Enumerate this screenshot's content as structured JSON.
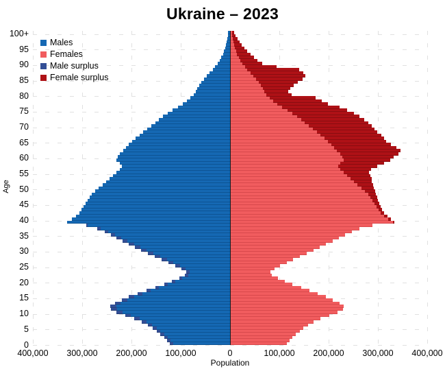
{
  "title": "Ukraine – 2023",
  "legend": {
    "items": [
      {
        "label": "Males",
        "color": "#1568b3"
      },
      {
        "label": "Females",
        "color": "#f15c5e"
      },
      {
        "label": "Male surplus",
        "color": "#334f96"
      },
      {
        "label": "Female surplus",
        "color": "#ae1116"
      }
    ]
  },
  "axes": {
    "x_label": "Population",
    "y_label": "Age",
    "x_tick_labels": [
      "400,000",
      "300,000",
      "200,000",
      "100,000",
      "0",
      "100,000",
      "200,000",
      "300,000",
      "400,000"
    ],
    "y_tick_labels": [
      "100+",
      "95",
      "90",
      "85",
      "80",
      "75",
      "70",
      "65",
      "60",
      "55",
      "50",
      "45",
      "40",
      "35",
      "30",
      "25",
      "20",
      "15",
      "10",
      "5",
      "0"
    ],
    "x_max_each_side": 400000,
    "grid": true
  },
  "chart_data": {
    "type": "bar",
    "subtype": "population-pyramid",
    "title": "Ukraine – 2023",
    "xlabel": "Population",
    "ylabel": "Age",
    "age_min": 0,
    "age_max_label": "100+",
    "xlim_per_side": [
      0,
      400000
    ],
    "legend_position": "top-left-inside",
    "colors": {
      "males": "#1568b3",
      "females": "#f15c5e",
      "male_surplus": "#334f96",
      "female_surplus": "#ae1116",
      "center_axis": "#1c1c1c",
      "grid": "#e0e0e0"
    },
    "series": [
      {
        "name": "Males",
        "side": "left",
        "values_by_age": [
          122000,
          128000,
          134000,
          141000,
          149000,
          157000,
          167000,
          179000,
          194000,
          212000,
          230000,
          242000,
          243000,
          234000,
          220000,
          205000,
          188000,
          170000,
          152000,
          134000,
          118000,
          103000,
          92000,
          89000,
          98000,
          111000,
          125000,
          139000,
          153000,
          167000,
          180000,
          193000,
          206000,
          218000,
          230000,
          242000,
          254000,
          269000,
          292000,
          330000,
          321000,
          312000,
          306000,
          301000,
          297000,
          293000,
          289000,
          285000,
          280000,
          274000,
          267000,
          259000,
          251000,
          244000,
          237000,
          230000,
          224000,
          220000,
          224000,
          230000,
          228000,
          223000,
          217000,
          211000,
          205000,
          198000,
          191000,
          184000,
          176000,
          168000,
          160000,
          152000,
          144000,
          136000,
          127000,
          116000,
          106000,
          96000,
          87000,
          80000,
          74000,
          70000,
          66000,
          62000,
          58000,
          53000,
          47000,
          41000,
          35000,
          30000,
          25000,
          21000,
          17500,
          14500,
          12000,
          10000,
          8000,
          6500,
          5000,
          4000,
          3500
        ]
      },
      {
        "name": "Females",
        "side": "right",
        "values_by_age": [
          115000,
          121000,
          127000,
          134000,
          141000,
          149000,
          158000,
          170000,
          184000,
          201000,
          218000,
          229000,
          230000,
          222000,
          209000,
          194000,
          178000,
          161000,
          144000,
          127000,
          111000,
          97000,
          85000,
          82000,
          90000,
          102000,
          115000,
          128000,
          142000,
          156000,
          169000,
          182000,
          195000,
          208000,
          221000,
          234000,
          247000,
          263000,
          289000,
          334000,
          327000,
          319000,
          313000,
          309000,
          306000,
          303000,
          300000,
          298000,
          296000,
          294000,
          292000,
          290000,
          288000,
          287000,
          285000,
          282000,
          286000,
          298000,
          313000,
          325000,
          332000,
          341000,
          346000,
          337000,
          327000,
          317000,
          312000,
          307000,
          299000,
          293000,
          287000,
          280000,
          272000,
          263000,
          251000,
          237000,
          222000,
          199000,
          186000,
          173000,
          125000,
          118000,
          122000,
          129000,
          137000,
          147000,
          153000,
          149000,
          140000,
          95000,
          65000,
          56000,
          48000,
          41000,
          35000,
          29000,
          24000,
          19000,
          15000,
          11000,
          8000
        ]
      }
    ],
    "overlay_rule": "male_surplus = max(0, males-females) drawn as dark tip of left bar; female_surplus = max(0, females-males) drawn as dark tip of right bar"
  }
}
